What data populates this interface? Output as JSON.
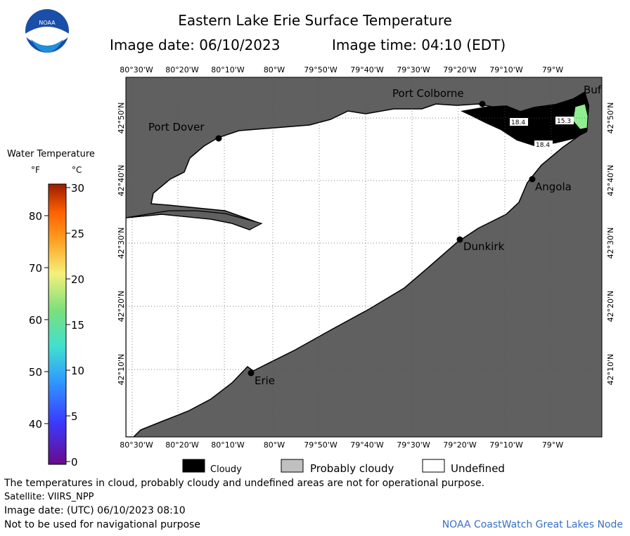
{
  "header": {
    "title": "Eastern Lake Erie Surface Temperature",
    "image_date": "Image date: 06/10/2023",
    "image_time": "Image time: 04:10 (EDT)",
    "logo_text": "NOAA"
  },
  "map": {
    "lon_labels": [
      "80°30'W",
      "80°20'W",
      "80°10'W",
      "80°W",
      "79°50'W",
      "79°40'W",
      "79°30'W",
      "79°20'W",
      "79°10'W",
      "79°W"
    ],
    "lat_labels": [
      "42°50'N",
      "42°40'N",
      "42°30'N",
      "42°20'N",
      "42°10'N"
    ],
    "places": {
      "port_colborne": "Port Colborne",
      "port_dover": "Port Dover",
      "angola": "Angola",
      "dunkirk": "Dunkirk",
      "erie": "Erie",
      "buffalo": "Buf"
    },
    "temp_labels": [
      "18.4",
      "15.3",
      "18.4"
    ],
    "colors": {
      "land": "#606060",
      "cloud": "#000000",
      "undefined": "#ffffff",
      "warm_water": "#90ee90"
    }
  },
  "colorbar": {
    "title": "Water Temperature",
    "unit_f": "°F",
    "unit_c": "°C",
    "f_ticks": [
      "80",
      "70",
      "60",
      "50",
      "40"
    ],
    "c_ticks": [
      "30",
      "25",
      "20",
      "15",
      "10",
      "5",
      "0"
    ]
  },
  "legend": {
    "cloudy": "Cloudy",
    "probably_cloudy": "Probably cloudy",
    "undefined": "Undefined"
  },
  "footer": {
    "disclaimer": "The temperatures in cloud, probably cloudy and undefined areas are not for operational purpose.",
    "satellite": "Satellite: VIIRS_NPP",
    "utc_date": "Image date: (UTC) 06/10/2023  08:10",
    "nav_warning": "Not to be used for navigational purpose",
    "credit": "NOAA CoastWatch Great Lakes Node"
  }
}
